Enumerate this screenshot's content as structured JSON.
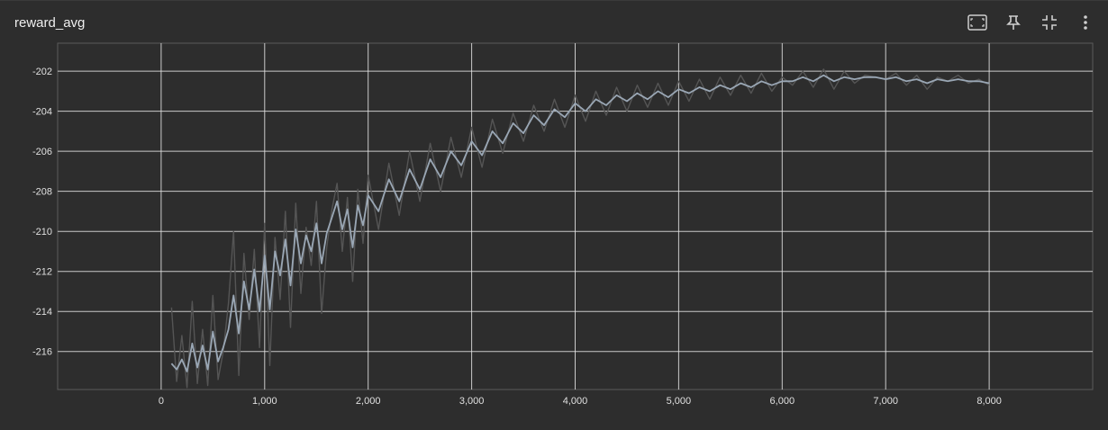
{
  "card": {
    "title": "reward_avg"
  },
  "toolbar": {
    "buttons": [
      {
        "name": "fit-domain-button",
        "icon": "fit-to-domain-icon"
      },
      {
        "name": "pin-button",
        "icon": "pin-icon"
      },
      {
        "name": "collapse-button",
        "icon": "collapse-icon"
      },
      {
        "name": "more-options-button",
        "icon": "more-vert-icon"
      }
    ]
  },
  "colors": {
    "background": "#2d2d2d",
    "grid": "#e6e6e6",
    "raw_series": "#555555",
    "smoothed_series": "#9aa7b5"
  },
  "chart_data": {
    "type": "line",
    "title": "reward_avg",
    "xlim": [
      -1000,
      9000
    ],
    "ylim": [
      -217.9,
      -200.6
    ],
    "x_ticks": [
      0,
      1000,
      2000,
      3000,
      4000,
      5000,
      6000,
      7000,
      8000
    ],
    "x_tick_labels": [
      "0",
      "1,000",
      "2,000",
      "3,000",
      "4,000",
      "5,000",
      "6,000",
      "7,000",
      "8,000"
    ],
    "y_ticks": [
      -216,
      -214,
      -212,
      -210,
      -208,
      -206,
      -204,
      -202
    ],
    "y_tick_labels": [
      "-216",
      "-214",
      "-212",
      "-210",
      "-208",
      "-206",
      "-204",
      "-202"
    ],
    "grid": true,
    "series": [
      {
        "style": "raw",
        "x": [
          100,
          150,
          200,
          250,
          300,
          350,
          400,
          450,
          500,
          550,
          600,
          650,
          700,
          750,
          800,
          850,
          900,
          950,
          1000,
          1050,
          1100,
          1150,
          1200,
          1250,
          1300,
          1350,
          1400,
          1450,
          1500,
          1550,
          1600,
          1650,
          1700,
          1750,
          1800,
          1850,
          1900,
          1950,
          2000,
          2100,
          2200,
          2300,
          2400,
          2500,
          2600,
          2700,
          2800,
          2900,
          3000,
          3100,
          3200,
          3300,
          3400,
          3500,
          3600,
          3700,
          3800,
          3900,
          4000,
          4100,
          4200,
          4300,
          4400,
          4500,
          4600,
          4700,
          4800,
          4900,
          5000,
          5100,
          5200,
          5300,
          5400,
          5500,
          5600,
          5700,
          5800,
          5900,
          6000,
          6100,
          6200,
          6300,
          6400,
          6500,
          6600,
          6700,
          6800,
          6900,
          7000,
          7100,
          7200,
          7300,
          7400,
          7500,
          7600,
          7700,
          7800,
          7900,
          8000
        ],
        "y": [
          -213.8,
          -217.5,
          -215.2,
          -217.8,
          -213.5,
          -217.6,
          -214.9,
          -217.7,
          -213.2,
          -217.4,
          -216.0,
          -213.6,
          -210.0,
          -217.2,
          -211.1,
          -214.4,
          -210.9,
          -215.8,
          -209.6,
          -216.7,
          -210.3,
          -213.4,
          -209.0,
          -214.8,
          -208.6,
          -213.1,
          -209.8,
          -211.7,
          -208.5,
          -214.1,
          -210.8,
          -208.9,
          -207.6,
          -211.0,
          -208.3,
          -212.5,
          -207.9,
          -210.6,
          -207.2,
          -209.9,
          -206.6,
          -209.2,
          -206.0,
          -208.5,
          -205.6,
          -208.0,
          -205.3,
          -207.3,
          -204.8,
          -206.8,
          -204.4,
          -206.1,
          -204.1,
          -205.5,
          -203.7,
          -205.0,
          -203.4,
          -204.8,
          -203.2,
          -204.5,
          -203.0,
          -204.2,
          -202.8,
          -204.0,
          -202.7,
          -203.8,
          -202.6,
          -203.7,
          -202.5,
          -203.5,
          -202.4,
          -203.4,
          -202.3,
          -203.2,
          -202.2,
          -203.1,
          -202.1,
          -203.0,
          -202.3,
          -202.7,
          -202.0,
          -202.8,
          -201.9,
          -202.9,
          -202.0,
          -202.6,
          -202.2,
          -202.3,
          -202.4,
          -202.1,
          -202.7,
          -202.2,
          -202.9,
          -202.3,
          -202.5,
          -202.2,
          -202.6,
          -202.4,
          -202.7
        ]
      },
      {
        "style": "smoothed",
        "x": [
          100,
          150,
          200,
          250,
          300,
          350,
          400,
          450,
          500,
          550,
          600,
          650,
          700,
          750,
          800,
          850,
          900,
          950,
          1000,
          1050,
          1100,
          1150,
          1200,
          1250,
          1300,
          1350,
          1400,
          1450,
          1500,
          1550,
          1600,
          1650,
          1700,
          1750,
          1800,
          1850,
          1900,
          1950,
          2000,
          2100,
          2200,
          2300,
          2400,
          2500,
          2600,
          2700,
          2800,
          2900,
          3000,
          3100,
          3200,
          3300,
          3400,
          3500,
          3600,
          3700,
          3800,
          3900,
          4000,
          4100,
          4200,
          4300,
          4400,
          4500,
          4600,
          4700,
          4800,
          4900,
          5000,
          5100,
          5200,
          5300,
          5400,
          5500,
          5600,
          5700,
          5800,
          5900,
          6000,
          6100,
          6200,
          6300,
          6400,
          6500,
          6600,
          6700,
          6800,
          6900,
          7000,
          7100,
          7200,
          7300,
          7400,
          7500,
          7600,
          7700,
          7800,
          7900,
          8000
        ],
        "y": [
          -216.6,
          -216.9,
          -216.4,
          -217.0,
          -215.6,
          -216.8,
          -215.7,
          -216.9,
          -215.0,
          -216.5,
          -215.8,
          -214.9,
          -213.2,
          -215.1,
          -212.5,
          -213.9,
          -211.9,
          -214.0,
          -211.2,
          -213.9,
          -211.0,
          -212.2,
          -210.4,
          -212.7,
          -209.9,
          -211.6,
          -210.2,
          -211.0,
          -209.6,
          -211.6,
          -210.1,
          -209.3,
          -208.5,
          -209.9,
          -208.9,
          -210.8,
          -208.7,
          -209.7,
          -208.2,
          -209.0,
          -207.4,
          -208.5,
          -206.9,
          -207.9,
          -206.4,
          -207.3,
          -206.0,
          -206.7,
          -205.5,
          -206.2,
          -205.0,
          -205.6,
          -204.6,
          -205.1,
          -204.2,
          -204.7,
          -203.9,
          -204.3,
          -203.6,
          -204.0,
          -203.4,
          -203.7,
          -203.2,
          -203.5,
          -203.1,
          -203.4,
          -203.0,
          -203.3,
          -202.9,
          -203.1,
          -202.8,
          -203.0,
          -202.7,
          -202.9,
          -202.6,
          -202.8,
          -202.5,
          -202.7,
          -202.5,
          -202.5,
          -202.3,
          -202.5,
          -202.2,
          -202.5,
          -202.3,
          -202.4,
          -202.3,
          -202.3,
          -202.4,
          -202.3,
          -202.5,
          -202.4,
          -202.6,
          -202.4,
          -202.5,
          -202.4,
          -202.5,
          -202.5,
          -202.6
        ]
      }
    ]
  }
}
